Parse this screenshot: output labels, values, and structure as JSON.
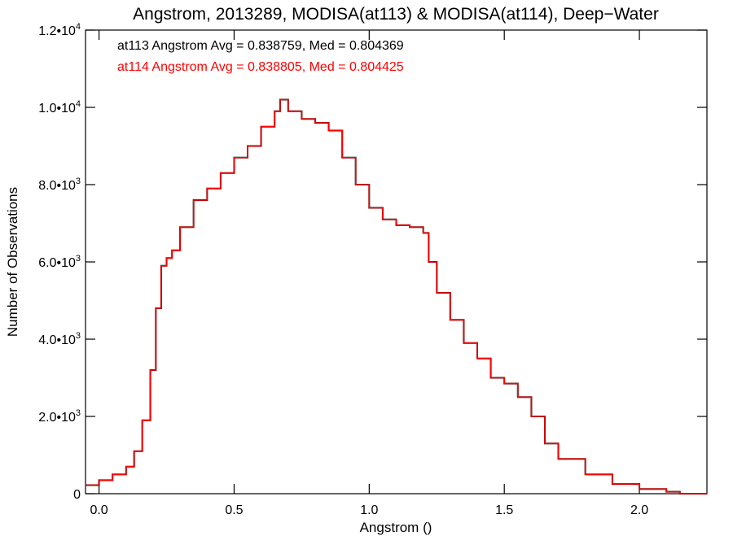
{
  "chart_data": {
    "type": "line",
    "step": true,
    "title": "Angstrom, 2013289, MODISA(at113) & MODISA(at114), Deep−Water",
    "xlabel": "Angstrom ()",
    "ylabel": "Number of Observations",
    "xlim": [
      -0.05,
      2.25
    ],
    "ylim": [
      0,
      12000
    ],
    "x_ticks": [
      {
        "value": 0.0,
        "label": "0.0"
      },
      {
        "value": 0.5,
        "label": "0.5"
      },
      {
        "value": 1.0,
        "label": "1.0"
      },
      {
        "value": 1.5,
        "label": "1.5"
      },
      {
        "value": 2.0,
        "label": "2.0"
      }
    ],
    "y_ticks": [
      {
        "value": 0,
        "mantissa": "0",
        "exponent": ""
      },
      {
        "value": 2000,
        "mantissa": "2.0•10",
        "exponent": "3"
      },
      {
        "value": 4000,
        "mantissa": "4.0•10",
        "exponent": "3"
      },
      {
        "value": 6000,
        "mantissa": "6.0•10",
        "exponent": "3"
      },
      {
        "value": 8000,
        "mantissa": "8.0•10",
        "exponent": "3"
      },
      {
        "value": 10000,
        "mantissa": "1.0•10",
        "exponent": "4"
      },
      {
        "value": 12000,
        "mantissa": "1.2•10",
        "exponent": "4"
      }
    ],
    "annotations": [
      {
        "text": "at113 Angstrom Avg = 0.838759, Med = 0.804369",
        "color": "#000000"
      },
      {
        "text": "at114 Angstrom Avg = 0.838805, Med = 0.804425",
        "color": "#ff0000"
      }
    ],
    "grid": false,
    "series": [
      {
        "name": "at113",
        "color": "#000000",
        "x": [
          -0.05,
          0.0,
          0.05,
          0.1,
          0.13,
          0.16,
          0.19,
          0.21,
          0.23,
          0.25,
          0.27,
          0.3,
          0.35,
          0.4,
          0.45,
          0.5,
          0.55,
          0.6,
          0.65,
          0.67,
          0.7,
          0.75,
          0.8,
          0.85,
          0.9,
          0.95,
          1.0,
          1.05,
          1.1,
          1.15,
          1.2,
          1.22,
          1.25,
          1.3,
          1.35,
          1.4,
          1.45,
          1.5,
          1.55,
          1.6,
          1.65,
          1.7,
          1.8,
          1.9,
          2.0,
          2.1,
          2.15,
          2.25
        ],
        "y": [
          220,
          350,
          500,
          700,
          1100,
          1900,
          3200,
          4800,
          5900,
          6100,
          6300,
          6900,
          7600,
          7900,
          8300,
          8700,
          9000,
          9500,
          9900,
          10200,
          9900,
          9700,
          9600,
          9400,
          8700,
          8000,
          7400,
          7100,
          6950,
          6900,
          6750,
          6000,
          5200,
          4500,
          3900,
          3500,
          3000,
          2850,
          2500,
          2000,
          1300,
          900,
          500,
          250,
          120,
          50,
          0,
          0
        ]
      },
      {
        "name": "at114",
        "color": "#ff0000",
        "x": [
          -0.05,
          0.0,
          0.05,
          0.1,
          0.13,
          0.16,
          0.19,
          0.21,
          0.23,
          0.25,
          0.27,
          0.3,
          0.35,
          0.4,
          0.45,
          0.5,
          0.55,
          0.6,
          0.65,
          0.67,
          0.7,
          0.75,
          0.8,
          0.85,
          0.9,
          0.95,
          1.0,
          1.05,
          1.1,
          1.15,
          1.2,
          1.22,
          1.25,
          1.3,
          1.35,
          1.4,
          1.45,
          1.5,
          1.55,
          1.6,
          1.65,
          1.7,
          1.8,
          1.9,
          2.0,
          2.1,
          2.15,
          2.25
        ],
        "y": [
          220,
          350,
          500,
          700,
          1100,
          1900,
          3200,
          4800,
          5900,
          6100,
          6300,
          6900,
          7600,
          7900,
          8300,
          8700,
          9000,
          9500,
          9900,
          10200,
          9900,
          9700,
          9600,
          9400,
          8700,
          8000,
          7400,
          7100,
          6950,
          6900,
          6750,
          6000,
          5200,
          4500,
          3900,
          3500,
          3000,
          2850,
          2500,
          2000,
          1300,
          900,
          500,
          250,
          120,
          50,
          0,
          0
        ]
      }
    ]
  }
}
